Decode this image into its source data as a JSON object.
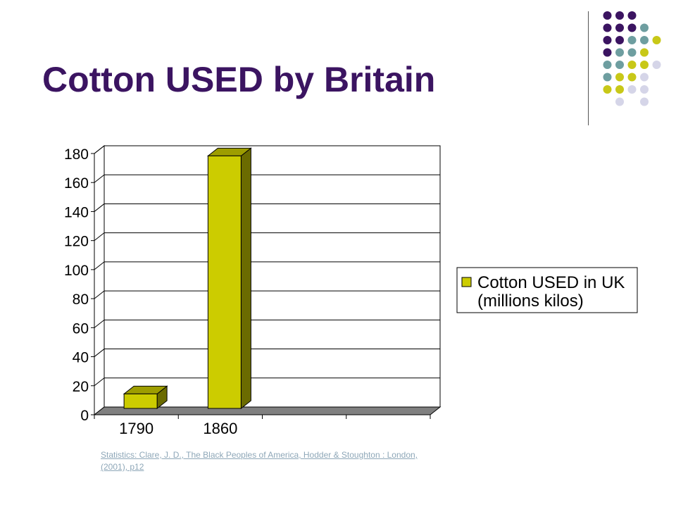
{
  "slide": {
    "title": "Cotton USED by Britain",
    "source": "Statistics: Clare, J. D., The Black Peoples of America, Hodder & Stoughton : London, (2001), p12"
  },
  "decor": {
    "dot_colors": [
      "#3b1461",
      "#6e9ea0",
      "#c8c818",
      "#d5d5e8"
    ],
    "dot_grid": [
      [
        -1,
        0,
        0,
        0,
        -1,
        -1
      ],
      [
        -1,
        0,
        0,
        0,
        1,
        -1
      ],
      [
        -1,
        0,
        0,
        1,
        1,
        2
      ],
      [
        -1,
        0,
        1,
        1,
        2,
        -1
      ],
      [
        -1,
        1,
        1,
        2,
        2,
        3
      ],
      [
        -1,
        1,
        2,
        2,
        3,
        -1
      ],
      [
        -1,
        2,
        2,
        3,
        3,
        -1
      ],
      [
        -1,
        -1,
        3,
        -1,
        3,
        -1
      ]
    ]
  },
  "chart_data": {
    "type": "bar",
    "style": "3d",
    "categories": [
      "1790",
      "1860"
    ],
    "category_slots": 4,
    "series": [
      {
        "name": "Cotton USED in UK (millions kilos)",
        "values": [
          10,
          174
        ],
        "color": "#cccc00",
        "side_color": "#6b6b00",
        "top_color": "#9d9d00"
      }
    ],
    "title": "",
    "xlabel": "",
    "ylabel": "",
    "ylim": [
      0,
      180
    ],
    "yticks": [
      "0",
      "20",
      "40",
      "60",
      "80",
      "100",
      "120",
      "140",
      "160",
      "180"
    ],
    "grid": true,
    "legend_placement": "right",
    "legend_lines": [
      "Cotton USED in UK",
      "(millions kilos)"
    ],
    "floor_color": "#808080"
  }
}
